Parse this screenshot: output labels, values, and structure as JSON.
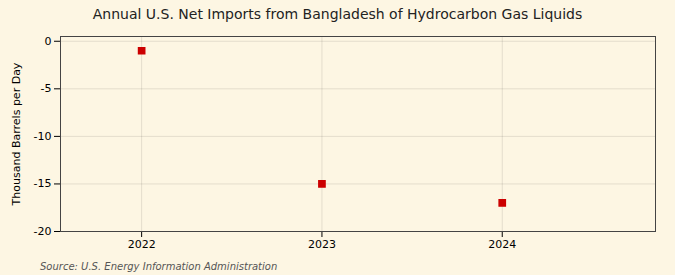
{
  "chart_data": {
    "type": "scatter",
    "title": "Annual U.S. Net Imports from Bangladesh of Hydrocarbon Gas Liquids",
    "ylabel": "Thousand Barrels per Day",
    "annotation": "Source: U.S. Energy Information Administration",
    "x": [
      2022,
      2023,
      2024
    ],
    "values": [
      -1.0,
      -15.0,
      -17.0
    ],
    "color": "#cc0000",
    "marker": "square",
    "xlim": [
      2021.55,
      2024.85
    ],
    "ylim": [
      -20,
      0.5
    ],
    "xticks": [
      2022,
      2023,
      2024
    ],
    "yticks": [
      0,
      -5,
      -10,
      -15,
      -20
    ],
    "grid": true
  }
}
